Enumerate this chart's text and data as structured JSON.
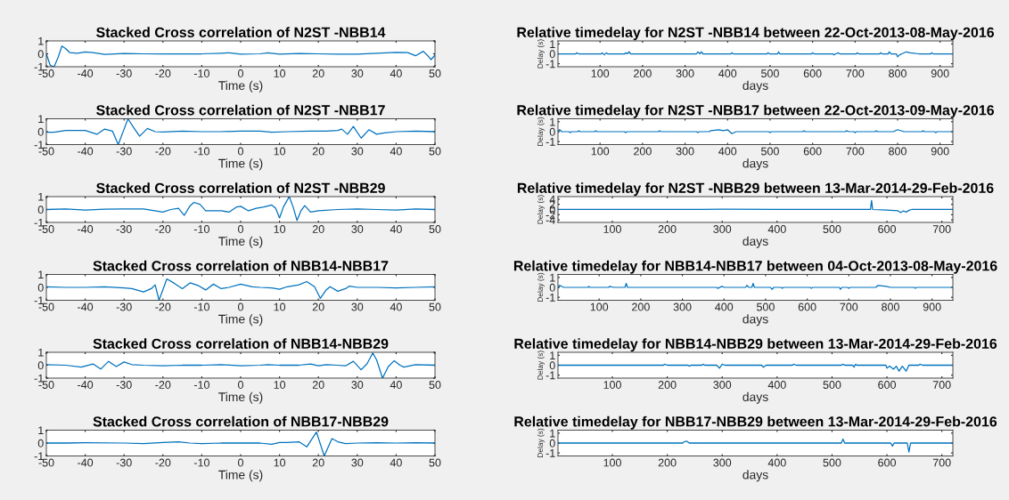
{
  "chart_data": [
    {
      "type": "line",
      "title": "Stacked Cross correlation of N2ST -NBB14",
      "xlabel": "Time (s)",
      "color": "#0072bd",
      "xlim": [
        -50,
        50
      ],
      "ylim": [
        -1,
        1
      ],
      "xticks": [
        -50,
        -40,
        -30,
        -20,
        -10,
        0,
        10,
        20,
        30,
        40,
        50
      ],
      "yticks": [
        -1,
        0,
        1
      ],
      "grid": false,
      "x": [
        -50,
        -49,
        -48,
        -47,
        -46,
        -45,
        -44,
        -42,
        -40,
        -38,
        -35,
        -30,
        -25,
        -20,
        -15,
        -10,
        -5,
        -3,
        0,
        5,
        7,
        10,
        15,
        20,
        25,
        30,
        35,
        40,
        43,
        45,
        47,
        48,
        49,
        50
      ],
      "values": [
        0,
        -0.9,
        -1,
        -0.3,
        0.6,
        0.4,
        0.1,
        0.05,
        0.15,
        0.1,
        -0.05,
        0.02,
        0,
        0,
        0,
        0,
        0.05,
        0.08,
        -0.02,
        0,
        0.07,
        -0.02,
        0.02,
        0,
        -0.03,
        -0.03,
        0.05,
        0.12,
        0.1,
        -0.15,
        0.2,
        -0.1,
        -0.45,
        -0.1
      ]
    },
    {
      "type": "line",
      "title": "Relative timedelay for N2ST -NBB14 between 22-Oct-2013-08-May-2016",
      "xlabel": "days",
      "ylabel": "Delay (s)",
      "color": "#0072bd",
      "xlim": [
        1,
        930
      ],
      "ylim": [
        -1.3,
        1.3
      ],
      "xticks": [
        100,
        200,
        300,
        400,
        500,
        600,
        700,
        800,
        900
      ],
      "yticks": [
        -1,
        0,
        1
      ],
      "grid": false,
      "x": [
        1,
        43,
        45,
        50,
        103,
        105,
        110,
        115,
        118,
        158,
        160,
        164,
        168,
        172,
        327,
        330,
        335,
        338,
        342,
        408,
        410,
        414,
        493,
        495,
        499,
        518,
        520,
        523,
        598,
        600,
        604,
        648,
        650,
        655,
        660,
        664,
        703,
        705,
        709,
        758,
        760,
        764,
        778,
        780,
        785,
        797,
        800,
        805,
        810,
        820,
        830,
        850,
        878,
        880,
        884,
        930
      ],
      "values": [
        0,
        0,
        0.1,
        0,
        0,
        0.1,
        -0.1,
        0.1,
        0,
        0,
        0.1,
        0,
        0.2,
        0,
        0,
        0.2,
        0,
        0.2,
        0,
        0,
        0.1,
        0,
        0,
        0.1,
        0,
        0,
        0.2,
        0,
        0,
        0.1,
        0,
        0,
        -0.1,
        0,
        0.1,
        0,
        0,
        0.1,
        0,
        0,
        0.1,
        0,
        0,
        0.2,
        0,
        0,
        -0.3,
        -0.1,
        0,
        0.2,
        0.1,
        0,
        0,
        0.1,
        0,
        0
      ]
    },
    {
      "type": "line",
      "title": "Stacked Cross correlation of N2ST -NBB17",
      "xlabel": "Time (s)",
      "color": "#0072bd",
      "xlim": [
        -50,
        50
      ],
      "ylim": [
        -1,
        1
      ],
      "xticks": [
        -50,
        -40,
        -30,
        -20,
        -10,
        0,
        10,
        20,
        30,
        40,
        50
      ],
      "yticks": [
        -1,
        0,
        1
      ],
      "grid": false,
      "x": [
        -50,
        -48,
        -45,
        -40,
        -37,
        -35,
        -33,
        -31.5,
        -30,
        -29,
        -27.5,
        -26,
        -24,
        -22,
        -20,
        -15,
        -10,
        -5,
        0,
        5,
        8,
        12,
        18,
        22,
        25,
        26,
        27.5,
        29,
        31,
        33,
        35,
        37,
        40,
        45,
        50
      ],
      "values": [
        -0.05,
        -0.05,
        0.1,
        0.1,
        -0.2,
        0.2,
        0.05,
        -1,
        0.2,
        1,
        0.3,
        -0.35,
        0.25,
        0,
        -0.03,
        0.05,
        0,
        0,
        0.05,
        0.05,
        -0.05,
        0,
        0.05,
        0.05,
        0.1,
        0.2,
        -0.2,
        0.4,
        -0.5,
        0.15,
        -0.2,
        -0.1,
        0,
        0.05,
        0
      ]
    },
    {
      "type": "line",
      "title": "Relative timedelay for N2ST -NBB17 between 22-Oct-2013-09-May-2016",
      "xlabel": "days",
      "ylabel": "Delay (s)",
      "color": "#0072bd",
      "xlim": [
        1,
        930
      ],
      "ylim": [
        -1.3,
        1.3
      ],
      "xticks": [
        100,
        200,
        300,
        400,
        500,
        600,
        700,
        800,
        900
      ],
      "yticks": [
        -1,
        0,
        1
      ],
      "grid": false,
      "x": [
        1,
        5,
        10,
        27,
        30,
        33,
        47,
        50,
        53,
        87,
        90,
        93,
        157,
        160,
        163,
        237,
        240,
        243,
        327,
        330,
        333,
        357,
        360,
        380,
        390,
        400,
        410,
        420,
        497,
        500,
        503,
        577,
        580,
        583,
        677,
        680,
        685,
        697,
        700,
        703,
        747,
        750,
        753,
        790,
        800,
        815,
        857,
        860,
        863,
        887,
        890,
        893,
        930
      ],
      "values": [
        0,
        0.2,
        0,
        0,
        -0.1,
        0,
        0,
        0.1,
        0,
        0,
        0.1,
        0,
        0,
        -0.1,
        0,
        0,
        0.1,
        0,
        0,
        -0.1,
        0,
        0,
        0.1,
        0.2,
        0.1,
        0.2,
        -0.2,
        0,
        0,
        -0.1,
        0,
        0,
        0.1,
        0,
        0,
        0.1,
        0,
        0,
        -0.1,
        0,
        0,
        0.1,
        0,
        0,
        0.2,
        0,
        0,
        0.1,
        0,
        0,
        -0.1,
        0,
        0
      ]
    },
    {
      "type": "line",
      "title": "Stacked Cross correlation of N2ST -NBB29",
      "xlabel": "Time (s)",
      "color": "#0072bd",
      "xlim": [
        -50,
        50
      ],
      "ylim": [
        -1,
        1
      ],
      "xticks": [
        -50,
        -40,
        -30,
        -20,
        -10,
        0,
        10,
        20,
        30,
        40,
        50
      ],
      "yticks": [
        -1,
        0,
        1
      ],
      "grid": false,
      "x": [
        -50,
        -45,
        -40,
        -35,
        -30,
        -25,
        -20,
        -18,
        -16,
        -14.5,
        -13,
        -12,
        -10.5,
        -9,
        -7,
        -5,
        -3,
        -1,
        0,
        2,
        4,
        6,
        8,
        9,
        10,
        11,
        12.5,
        13.5,
        14.5,
        15.5,
        16.5,
        18,
        20,
        25,
        30,
        35,
        40,
        45,
        50
      ],
      "values": [
        0,
        0.05,
        -0.05,
        0.02,
        0.05,
        0.05,
        -0.2,
        0,
        0.1,
        -0.45,
        0.3,
        0.55,
        0.4,
        -0.1,
        -0.1,
        -0.1,
        -0.2,
        0.2,
        0.25,
        -0.1,
        0.1,
        0.2,
        0.35,
        0.1,
        -0.65,
        0.2,
        1,
        0.2,
        -0.85,
        -0.1,
        0.3,
        -0.2,
        -0.1,
        0,
        0.05,
        0,
        -0.05,
        0.05,
        0
      ]
    },
    {
      "type": "line",
      "title": "Relative timedelay for N2ST -NBB29 between 13-Mar-2014-29-Feb-2016",
      "xlabel": "days",
      "ylabel": "Delay (s)",
      "color": "#0072bd",
      "xlim": [
        1,
        720
      ],
      "ylim": [
        -5,
        5
      ],
      "xticks": [
        100,
        200,
        300,
        400,
        500,
        600,
        700
      ],
      "yticks": [
        -4,
        -2,
        0,
        2,
        4
      ],
      "grid": false,
      "x": [
        1,
        260,
        300,
        400,
        570,
        572,
        574,
        600,
        620,
        625,
        630,
        635,
        640,
        645,
        720
      ],
      "values": [
        0,
        0,
        0.1,
        0,
        0,
        3.5,
        0,
        -0.2,
        -0.5,
        -1.2,
        -0.5,
        -1,
        -0.3,
        0,
        0
      ]
    },
    {
      "type": "line",
      "title": "Stacked Cross correlation of NBB14-NBB17",
      "xlabel": "Time (s)",
      "color": "#0072bd",
      "xlim": [
        -50,
        50
      ],
      "ylim": [
        -1,
        1
      ],
      "xticks": [
        -50,
        -40,
        -30,
        -20,
        -10,
        0,
        10,
        20,
        30,
        40,
        50
      ],
      "yticks": [
        -1,
        0,
        1
      ],
      "grid": false,
      "x": [
        -50,
        -45,
        -40,
        -35,
        -30,
        -28,
        -25,
        -23,
        -22,
        -21,
        -19,
        -17,
        -15,
        -13,
        -11,
        -9,
        -7,
        -5,
        -3,
        0,
        3,
        5,
        8,
        10,
        12,
        15,
        17,
        19,
        20.5,
        22,
        23,
        25,
        27,
        28,
        30,
        35,
        40,
        45,
        50
      ],
      "values": [
        0.05,
        0,
        0,
        0.05,
        -0.05,
        -0.1,
        -0.35,
        -0.1,
        0.2,
        -1,
        0.65,
        0.3,
        -0.1,
        0.35,
        0.15,
        -0.2,
        0.25,
        -0.1,
        0,
        0.25,
        0.05,
        0,
        -0.05,
        -0.15,
        0.05,
        0.2,
        0.45,
        0.05,
        -0.85,
        -0.2,
        0.05,
        -0.3,
        -0.1,
        0.1,
        0,
        0,
        -0.05,
        0,
        0.05
      ]
    },
    {
      "type": "line",
      "title": "Relative timedelay for NBB14-NBB17 between 04-Oct-2013-08-May-2016",
      "xlabel": "days",
      "ylabel": "Delay (s)",
      "color": "#0072bd",
      "xlim": [
        1,
        950
      ],
      "ylim": [
        -1.3,
        1.3
      ],
      "xticks": [
        100,
        200,
        300,
        400,
        500,
        600,
        700,
        800,
        900
      ],
      "yticks": [
        -1,
        0,
        1
      ],
      "grid": false,
      "x": [
        1,
        5,
        15,
        73,
        75,
        78,
        123,
        125,
        135,
        162,
        165,
        168,
        382,
        385,
        395,
        400,
        452,
        455,
        460,
        467,
        470,
        473,
        512,
        515,
        520,
        537,
        540,
        543,
        607,
        610,
        613,
        677,
        680,
        683,
        697,
        700,
        703,
        765,
        770,
        790,
        800,
        857,
        860,
        863,
        950
      ],
      "values": [
        0,
        0.2,
        0,
        0,
        0.1,
        0,
        0,
        0.1,
        0,
        0,
        0.4,
        0,
        0,
        -0.1,
        0.1,
        0,
        0,
        0.2,
        0,
        0,
        0.4,
        0,
        0,
        -0.2,
        0,
        0,
        -0.1,
        0,
        0,
        -0.1,
        0,
        0,
        -0.2,
        0,
        0,
        -0.1,
        0,
        0,
        0.2,
        0.1,
        0,
        0,
        -0.1,
        0,
        0
      ]
    },
    {
      "type": "line",
      "title": "Stacked Cross correlation of NBB14-NBB29",
      "xlabel": "Time (s)",
      "color": "#0072bd",
      "xlim": [
        -50,
        50
      ],
      "ylim": [
        -1,
        1
      ],
      "xticks": [
        -50,
        -40,
        -30,
        -20,
        -10,
        0,
        10,
        20,
        30,
        40,
        50
      ],
      "yticks": [
        -1,
        0,
        1
      ],
      "grid": false,
      "x": [
        -50,
        -45,
        -41,
        -38,
        -36,
        -34,
        -32,
        -30,
        -28,
        -25,
        -20,
        -15,
        -10,
        -5,
        0,
        5,
        7,
        10,
        15,
        18,
        20,
        22,
        25,
        27,
        29,
        31,
        32.5,
        34,
        35,
        36.5,
        38,
        39.5,
        41,
        42,
        45,
        50
      ],
      "values": [
        0.05,
        0,
        -0.15,
        0.1,
        -0.3,
        0.3,
        -0.1,
        0.25,
        0.05,
        0,
        -0.05,
        0,
        0,
        0.05,
        -0.05,
        0,
        0.05,
        0,
        0,
        0.1,
        -0.05,
        0.05,
        0,
        -0.05,
        0.3,
        -0.35,
        0.1,
        0.95,
        0.4,
        -1,
        -0.1,
        0.35,
        0,
        -0.15,
        0.05,
        0
      ]
    },
    {
      "type": "line",
      "title": "Relative timedelay for NBB14-NBB29 between 13-Mar-2014-29-Feb-2016",
      "xlabel": "days",
      "ylabel": "Delay (s)",
      "color": "#0072bd",
      "xlim": [
        1,
        720
      ],
      "ylim": [
        -1.3,
        1.3
      ],
      "xticks": [
        100,
        200,
        300,
        400,
        500,
        600,
        700
      ],
      "yticks": [
        -1,
        0,
        1
      ],
      "grid": false,
      "x": [
        1,
        193,
        195,
        200,
        238,
        240,
        243,
        263,
        265,
        268,
        290,
        295,
        300,
        305,
        372,
        375,
        380,
        428,
        430,
        435,
        517,
        520,
        523,
        538,
        540,
        543,
        545,
        598,
        600,
        605,
        612,
        617,
        622,
        628,
        635,
        640,
        658,
        660,
        665,
        720
      ],
      "values": [
        0,
        0,
        0.1,
        0,
        0,
        -0.1,
        0,
        0,
        0.1,
        0,
        0,
        -0.3,
        0.1,
        0,
        0,
        -0.2,
        0,
        0,
        0.1,
        0,
        0,
        0.1,
        0,
        0,
        -0.2,
        0.1,
        0,
        0,
        -0.3,
        -0.1,
        -0.4,
        -0.1,
        -0.6,
        -0.1,
        -0.6,
        0,
        0,
        0.1,
        0,
        0
      ]
    },
    {
      "type": "line",
      "title": "Stacked Cross correlation of NBB17-NBB29",
      "xlabel": "Time (s)",
      "color": "#0072bd",
      "xlim": [
        -50,
        50
      ],
      "ylim": [
        -1,
        1
      ],
      "xticks": [
        -50,
        -40,
        -30,
        -20,
        -10,
        0,
        10,
        20,
        30,
        40,
        50
      ],
      "yticks": [
        -1,
        0,
        1
      ],
      "grid": false,
      "x": [
        -50,
        -45,
        -40,
        -30,
        -25,
        -20,
        -16,
        -13,
        -10,
        -5,
        0,
        5,
        8,
        10,
        12,
        15,
        17,
        19.5,
        21.5,
        23.5,
        25,
        27,
        30,
        35,
        40,
        45,
        50
      ],
      "values": [
        0,
        0,
        0.02,
        0,
        -0.05,
        0.05,
        0.1,
        0,
        -0.05,
        0,
        0,
        0,
        -0.1,
        0.05,
        0.05,
        0.1,
        -0.3,
        0.85,
        -1,
        0.35,
        0.1,
        -0.05,
        0,
        0.02,
        0,
        0.02,
        0
      ]
    },
    {
      "type": "line",
      "title": "Relative timedelay for NBB17-NBB29 between 13-Mar-2014-29-Feb-2016",
      "xlabel": "days",
      "ylabel": "Delay (s)",
      "color": "#0072bd",
      "xlim": [
        1,
        720
      ],
      "ylim": [
        -1.3,
        1.3
      ],
      "xticks": [
        100,
        200,
        300,
        400,
        500,
        600,
        700
      ],
      "yticks": [
        -1,
        0,
        1
      ],
      "grid": false,
      "x": [
        1,
        228,
        230,
        235,
        240,
        517,
        520,
        523,
        607,
        610,
        613,
        637,
        640,
        643,
        720
      ],
      "values": [
        0,
        0,
        0.1,
        0.2,
        0,
        0,
        0.4,
        0,
        0,
        -0.3,
        0,
        0,
        -0.9,
        0,
        0
      ]
    }
  ]
}
